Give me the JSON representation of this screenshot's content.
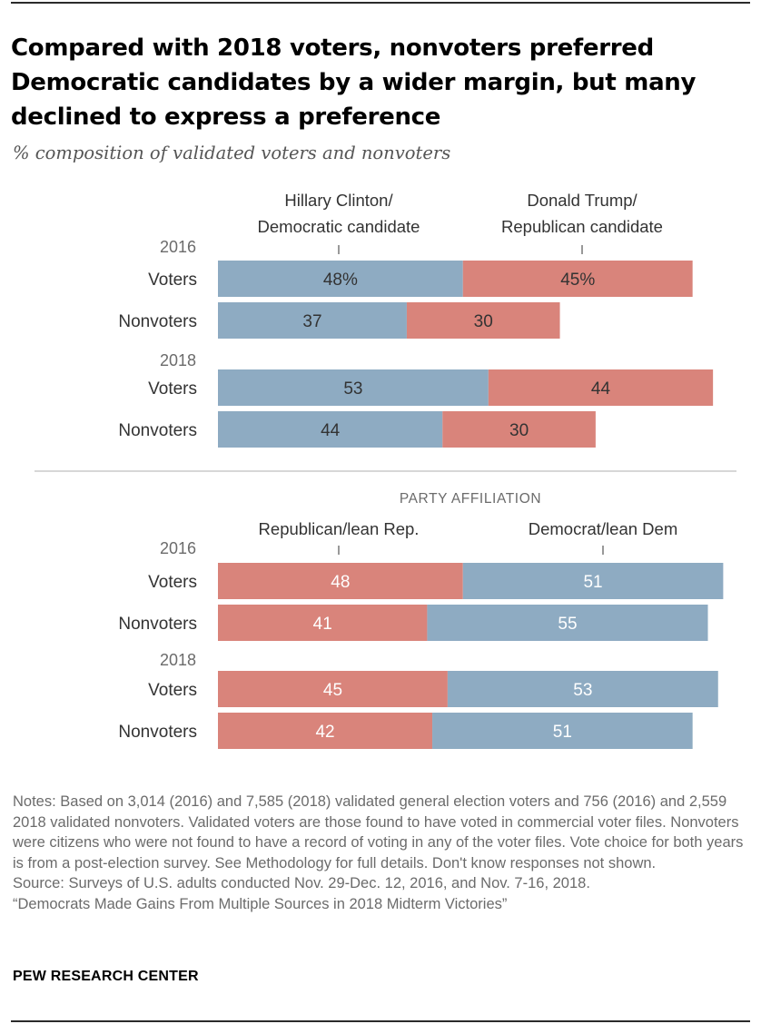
{
  "title": "Compared with 2018 voters, nonvoters preferred Democratic candidates by a wider margin, but many declined to express a preference",
  "subtitle": "% composition of validated voters and nonvoters",
  "colors": {
    "blue": "#8eabc2",
    "red": "#d9847b",
    "text_dark": "#333333",
    "text_light": "#ffffff",
    "rule": "#bfbfbf"
  },
  "chart_data": [
    {
      "type": "bar",
      "orientation": "horizontal-stacked",
      "series": [
        {
          "name": "Hillary Clinton/ Democratic candidate",
          "label_lines": [
            "Hillary Clinton/",
            "Democratic candidate"
          ],
          "color": "#8eabc2"
        },
        {
          "name": "Donald Trump/ Republican candidate",
          "label_lines": [
            "Donald Trump/",
            "Republican candidate"
          ],
          "color": "#d9847b"
        }
      ],
      "groups": [
        {
          "year": "2016",
          "rows": [
            {
              "category": "Voters",
              "values": [
                48,
                45
              ],
              "labels": [
                "48%",
                "45%"
              ]
            },
            {
              "category": "Nonvoters",
              "values": [
                37,
                30
              ],
              "labels": [
                "37",
                "30"
              ]
            }
          ]
        },
        {
          "year": "2018",
          "rows": [
            {
              "category": "Voters",
              "values": [
                53,
                44
              ],
              "labels": [
                "53",
                "44"
              ]
            },
            {
              "category": "Nonvoters",
              "values": [
                44,
                30
              ],
              "labels": [
                "44",
                "30"
              ]
            }
          ]
        }
      ],
      "xlim": [
        0,
        100
      ]
    },
    {
      "type": "bar",
      "orientation": "horizontal-stacked",
      "heading": "PARTY AFFILIATION",
      "series": [
        {
          "name": "Republican/lean Rep.",
          "label_lines": [
            "Republican/lean Rep."
          ],
          "color": "#d9847b"
        },
        {
          "name": "Democrat/lean Dem",
          "label_lines": [
            "Democrat/lean Dem"
          ],
          "color": "#8eabc2"
        }
      ],
      "groups": [
        {
          "year": "2016",
          "rows": [
            {
              "category": "Voters",
              "values": [
                48,
                51
              ],
              "labels": [
                "48",
                "51"
              ]
            },
            {
              "category": "Nonvoters",
              "values": [
                41,
                55
              ],
              "labels": [
                "41",
                "55"
              ]
            }
          ]
        },
        {
          "year": "2018",
          "rows": [
            {
              "category": "Voters",
              "values": [
                45,
                53
              ],
              "labels": [
                "45",
                "53"
              ]
            },
            {
              "category": "Nonvoters",
              "values": [
                42,
                51
              ],
              "labels": [
                "42",
                "51"
              ]
            }
          ]
        }
      ],
      "xlim": [
        0,
        100
      ]
    }
  ],
  "notes": [
    "Notes: Based on 3,014 (2016) and 7,585 (2018) validated general election voters and 756 (2016) and 2,559 2018 validated nonvoters. Validated voters are those found to have voted in commercial voter files. Nonvoters were citizens who were not found to have a record of voting in any of the voter files. Vote choice for both years is from a post-election survey. See Methodology for full details. Don't know responses not shown.",
    "Source: Surveys of U.S. adults conducted Nov. 29-Dec. 12, 2016, and Nov. 7-16, 2018.",
    "“Democrats Made Gains From Multiple Sources in 2018 Midterm Victories”"
  ],
  "footer": "PEW RESEARCH CENTER"
}
